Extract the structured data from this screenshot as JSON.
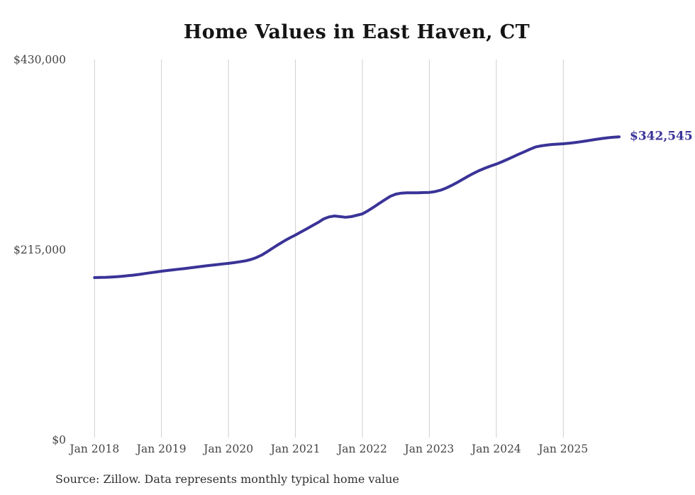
{
  "theme": {
    "background": "#ffffff",
    "line_color": "#3a3397",
    "grid_color": "#cfcfcf",
    "title_color": "#141414",
    "axis_label_color": "#454545",
    "source_color": "#303030"
  },
  "source_note": "Source: Zillow. Data represents monthly typical home value",
  "chart_data": {
    "type": "line",
    "title": "Home Values in East Haven, CT",
    "xlabel": "",
    "ylabel": "",
    "ylim": [
      0,
      430000
    ],
    "grid": "vertical-only",
    "legend": "none",
    "frequency": "monthly",
    "end_annotation": {
      "label": "$342,545",
      "value": 342545,
      "x": "2025-11"
    },
    "yticks": [
      {
        "value": 430000,
        "label": "$430,000"
      },
      {
        "value": 215000,
        "label": "$215,000"
      },
      {
        "value": 0,
        "label": "$0"
      }
    ],
    "xticks": [
      {
        "month_index": 0,
        "label": "Jan 2018"
      },
      {
        "month_index": 12,
        "label": "Jan 2019"
      },
      {
        "month_index": 24,
        "label": "Jan 2020"
      },
      {
        "month_index": 36,
        "label": "Jan 2021"
      },
      {
        "month_index": 48,
        "label": "Jan 2022"
      },
      {
        "month_index": 60,
        "label": "Jan 2023"
      },
      {
        "month_index": 72,
        "label": "Jan 2024"
      },
      {
        "month_index": 84,
        "label": "Jan 2025"
      }
    ],
    "x": [
      "2018-01",
      "2018-02",
      "2018-03",
      "2018-04",
      "2018-05",
      "2018-06",
      "2018-07",
      "2018-08",
      "2018-09",
      "2018-10",
      "2018-11",
      "2018-12",
      "2019-01",
      "2019-02",
      "2019-03",
      "2019-04",
      "2019-05",
      "2019-06",
      "2019-07",
      "2019-08",
      "2019-09",
      "2019-10",
      "2019-11",
      "2019-12",
      "2020-01",
      "2020-02",
      "2020-03",
      "2020-04",
      "2020-05",
      "2020-06",
      "2020-07",
      "2020-08",
      "2020-09",
      "2020-10",
      "2020-11",
      "2020-12",
      "2021-01",
      "2021-02",
      "2021-03",
      "2021-04",
      "2021-05",
      "2021-06",
      "2021-07",
      "2021-08",
      "2021-09",
      "2021-10",
      "2021-11",
      "2021-12",
      "2022-01",
      "2022-02",
      "2022-03",
      "2022-04",
      "2022-05",
      "2022-06",
      "2022-07",
      "2022-08",
      "2022-09",
      "2022-10",
      "2022-11",
      "2022-12",
      "2023-01",
      "2023-02",
      "2023-03",
      "2023-04",
      "2023-05",
      "2023-06",
      "2023-07",
      "2023-08",
      "2023-09",
      "2023-10",
      "2023-11",
      "2023-12",
      "2024-01",
      "2024-02",
      "2024-03",
      "2024-04",
      "2024-05",
      "2024-06",
      "2024-07",
      "2024-08",
      "2024-09",
      "2024-10",
      "2024-11",
      "2024-12",
      "2025-01",
      "2025-02",
      "2025-03",
      "2025-04",
      "2025-05",
      "2025-06",
      "2025-07",
      "2025-08",
      "2025-09",
      "2025-10",
      "2025-11"
    ],
    "values": [
      183400,
      183600,
      183700,
      184000,
      184400,
      184900,
      185500,
      186200,
      187000,
      187900,
      188800,
      189700,
      190600,
      191400,
      192100,
      192800,
      193500,
      194300,
      195100,
      195900,
      196700,
      197400,
      198100,
      198800,
      199500,
      200300,
      201200,
      202300,
      203800,
      206000,
      209000,
      212800,
      217000,
      221000,
      224800,
      228300,
      231500,
      235000,
      238500,
      242000,
      245500,
      249500,
      252000,
      253000,
      252300,
      251600,
      252300,
      253800,
      255400,
      259000,
      263000,
      267200,
      271300,
      275300,
      277800,
      278900,
      279200,
      279200,
      279300,
      279500,
      279700,
      280600,
      282200,
      284600,
      287600,
      291000,
      294600,
      298200,
      301600,
      304600,
      307200,
      309600,
      311700,
      314300,
      317100,
      320000,
      322900,
      325600,
      328500,
      331000,
      332300,
      333200,
      333900,
      334300,
      334700,
      335300,
      336000,
      336900,
      337800,
      338800,
      339800,
      340700,
      341500,
      342100,
      342545
    ]
  }
}
